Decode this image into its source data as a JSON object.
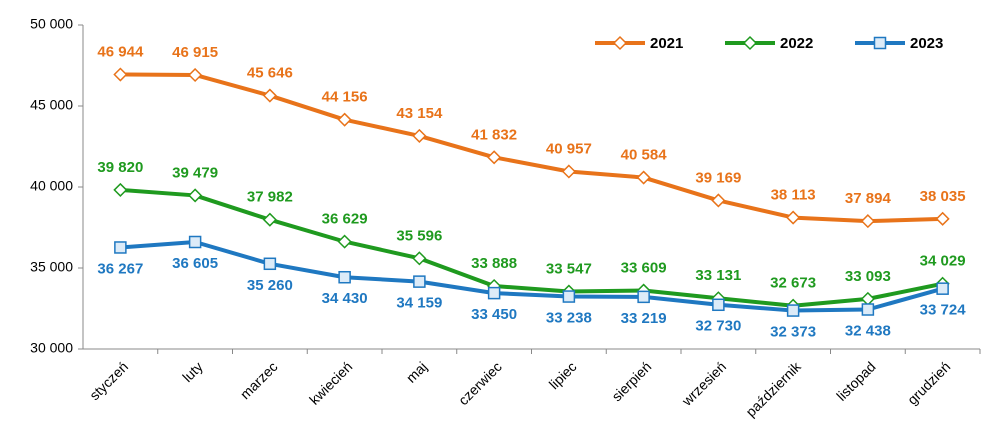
{
  "chart_data": {
    "type": "line",
    "categories": [
      "styczeń",
      "luty",
      "marzec",
      "kwiecień",
      "maj",
      "czerwiec",
      "lipiec",
      "sierpień",
      "wrzesień",
      "październik",
      "listopad",
      "grudzień"
    ],
    "series": [
      {
        "name": "2021",
        "color": "#e8731a",
        "marker": "diamond",
        "label_position": "above",
        "values": [
          46944,
          46915,
          45646,
          44156,
          43154,
          41832,
          40957,
          40584,
          39169,
          38113,
          37894,
          38035
        ],
        "value_labels": [
          "46 944",
          "46 915",
          "45 646",
          "44 156",
          "43 154",
          "41 832",
          "40 957",
          "40 584",
          "39 169",
          "38 113",
          "37 894",
          "38 035"
        ]
      },
      {
        "name": "2022",
        "color": "#1f9a1f",
        "marker": "diamond",
        "label_position": "above",
        "values": [
          39820,
          39479,
          37982,
          36629,
          35596,
          33888,
          33547,
          33609,
          33131,
          32673,
          33093,
          34029
        ],
        "value_labels": [
          "39 820",
          "39 479",
          "37 982",
          "36 629",
          "35 596",
          "33 888",
          "33 547",
          "33 609",
          "33 131",
          "32 673",
          "33 093",
          "34 029"
        ]
      },
      {
        "name": "2023",
        "color": "#1f78c1",
        "marker": "square",
        "label_position": "below",
        "values": [
          36267,
          36605,
          35260,
          34430,
          34159,
          33450,
          33238,
          33219,
          32730,
          32373,
          32438,
          33724
        ],
        "value_labels": [
          "36 267",
          "36 605",
          "35 260",
          "34 430",
          "34 159",
          "33 450",
          "33 238",
          "33 219",
          "32 730",
          "32 373",
          "32 438",
          "33 724"
        ]
      }
    ],
    "ylim": [
      30000,
      50000
    ],
    "yticks": [
      {
        "value": 30000,
        "label": "30 000"
      },
      {
        "value": 35000,
        "label": "35 000"
      },
      {
        "value": 40000,
        "label": "40 000"
      },
      {
        "value": 45000,
        "label": "45 000"
      },
      {
        "value": 50000,
        "label": "50 000"
      }
    ],
    "grid": false,
    "legend": "top-right"
  }
}
